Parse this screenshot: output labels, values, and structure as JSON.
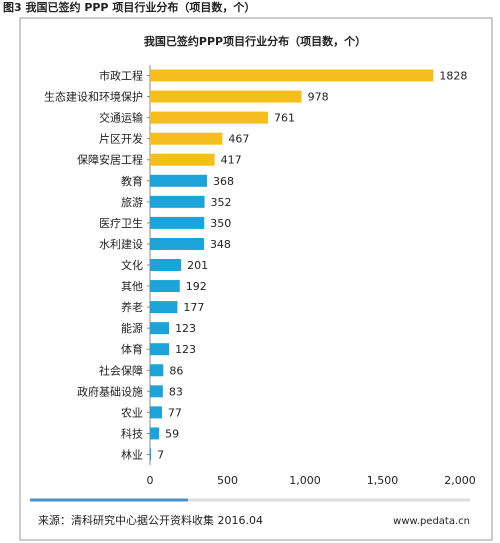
{
  "chart_data": {
    "type": "hbar",
    "caption": "图3 我国已签约 PPP 项目行业分布（项目数，个）",
    "title": "我国已签约PPP项目行业分布（项目数，个）",
    "categories": [
      "市政工程",
      "生态建设和环境保护",
      "交通运输",
      "片区开发",
      "保障安居工程",
      "教育",
      "旅游",
      "医疗卫生",
      "水利建设",
      "文化",
      "其他",
      "养老",
      "能源",
      "体育",
      "社会保障",
      "政府基础设施",
      "农业",
      "科技",
      "林业"
    ],
    "values": [
      1828,
      978,
      761,
      467,
      417,
      368,
      352,
      350,
      348,
      201,
      192,
      177,
      123,
      123,
      86,
      83,
      77,
      59,
      7
    ],
    "bar_colors": [
      "#f4bf1c",
      "#f4bf1c",
      "#f4bf1c",
      "#f4bf1c",
      "#f4bf1c",
      "#1ca3d9",
      "#1ca3d9",
      "#1ca3d9",
      "#1ca3d9",
      "#1ca3d9",
      "#1ca3d9",
      "#1ca3d9",
      "#1ca3d9",
      "#1ca3d9",
      "#1ca3d9",
      "#1ca3d9",
      "#1ca3d9",
      "#1ca3d9",
      "#1ca3d9"
    ],
    "xlim": [
      0,
      2000
    ],
    "xticks": [
      0,
      500,
      {
        "value": 1000,
        "label": "1,000"
      },
      {
        "value": 1500,
        "label": "1,500"
      },
      {
        "value": 2000,
        "label": "2,000"
      }
    ],
    "source": "来源：清科研究中心据公开资料收集 2016.04",
    "website": "www.pedata.cn"
  }
}
